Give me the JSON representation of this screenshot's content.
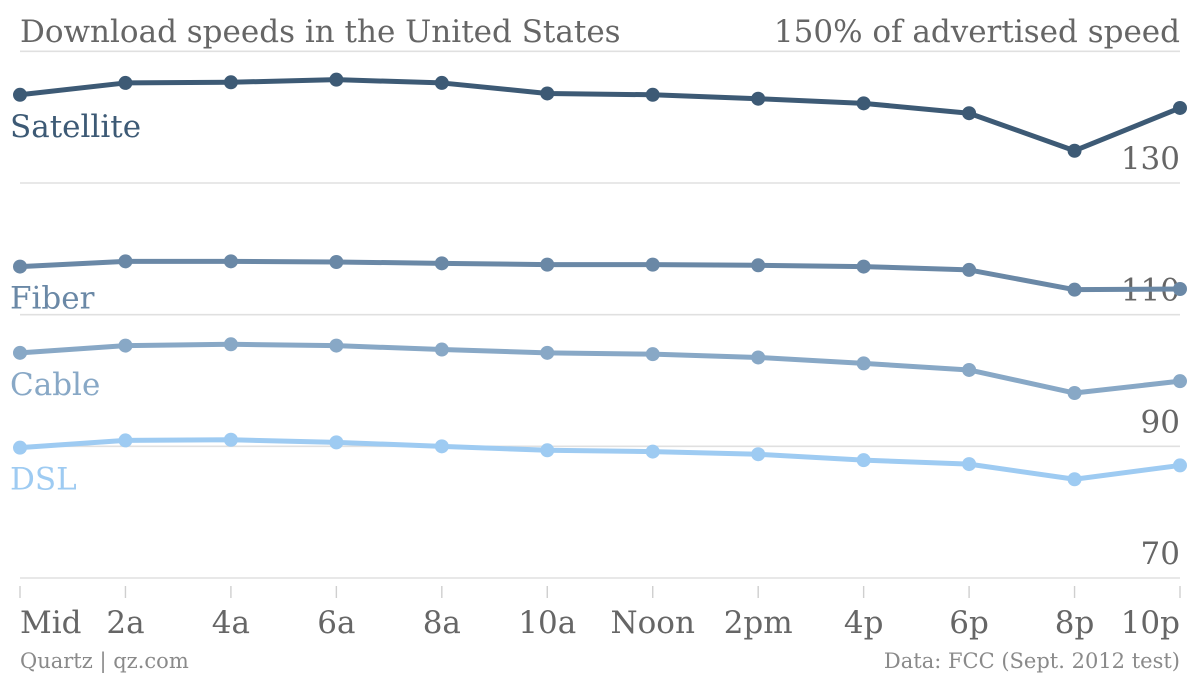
{
  "chart_data": {
    "type": "line",
    "title": "Download speeds in the United States",
    "subtitle": "150% of advertised speed",
    "categories": [
      "Mid",
      "2a",
      "4a",
      "6a",
      "8a",
      "10a",
      "Noon",
      "2pm",
      "4p",
      "6p",
      "8p",
      "10p"
    ],
    "yticks": [
      70,
      90,
      110,
      130
    ],
    "ylim": [
      68,
      150
    ],
    "grid": true,
    "legend": "inline-left",
    "series": [
      {
        "name": "Satellite",
        "color": "#3d5a75",
        "values": [
          143.4,
          145.2,
          145.3,
          145.7,
          145.2,
          143.6,
          143.4,
          142.8,
          142.1,
          140.6,
          134.9,
          141.4
        ]
      },
      {
        "name": "Fiber",
        "color": "#6a88a6",
        "values": [
          117.3,
          118.1,
          118.1,
          118.0,
          117.8,
          117.6,
          117.6,
          117.5,
          117.3,
          116.8,
          113.8,
          113.9
        ]
      },
      {
        "name": "Cable",
        "color": "#88a8c6",
        "values": [
          104.2,
          105.3,
          105.5,
          105.3,
          104.7,
          104.2,
          104.0,
          103.5,
          102.6,
          101.6,
          98.1,
          99.9
        ]
      },
      {
        "name": "DSL",
        "color": "#9ecbf2",
        "values": [
          89.8,
          90.9,
          91.0,
          90.6,
          90.0,
          89.4,
          89.2,
          88.8,
          87.9,
          87.3,
          85.0,
          87.1
        ]
      }
    ]
  },
  "footer": {
    "source_left": "Quartz | qz.com",
    "source_right": "Data: FCC (Sept. 2012 test)"
  }
}
